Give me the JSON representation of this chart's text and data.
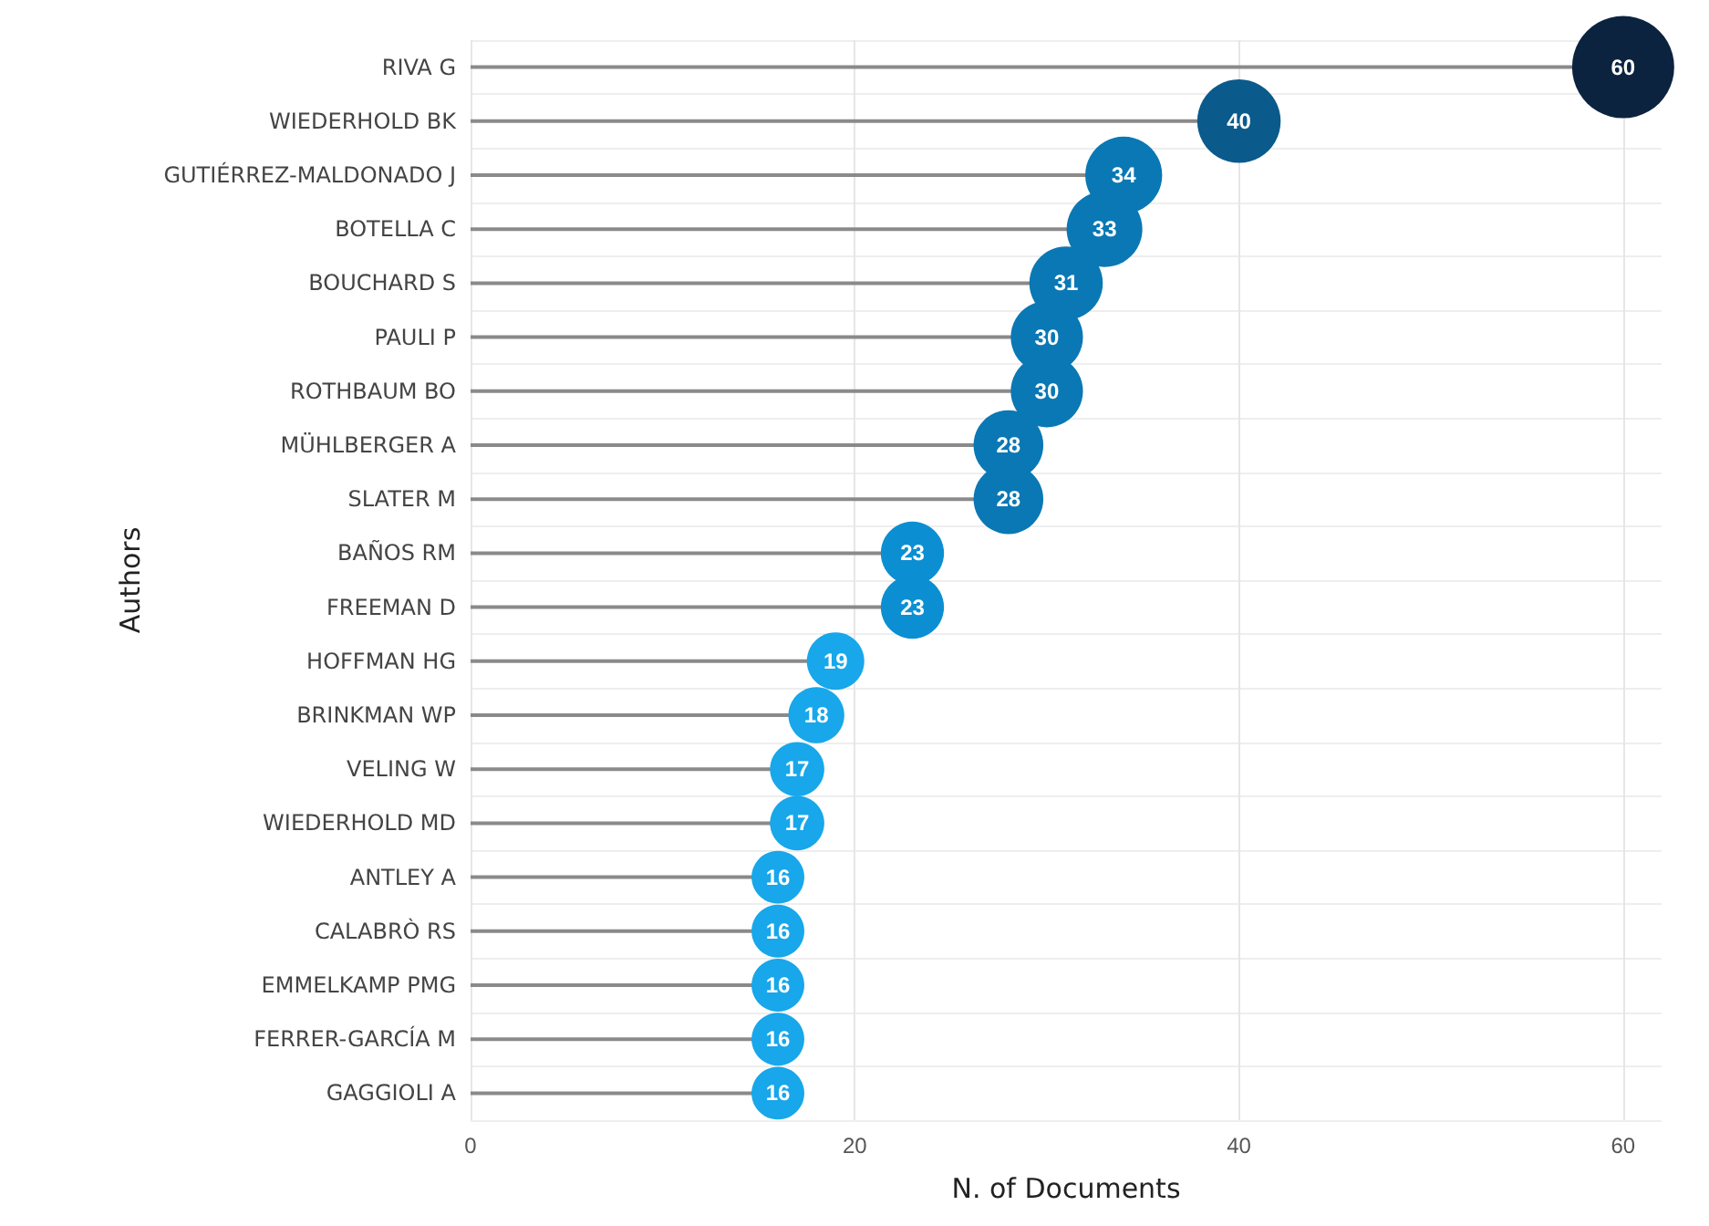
{
  "chart_data": {
    "type": "lollipop",
    "orientation": "horizontal",
    "xlabel": "N. of Documents",
    "ylabel": "Authors",
    "categories": [
      "RIVA G",
      "WIEDERHOLD BK",
      "GUTIÉRREZ-MALDONADO J",
      "BOTELLA C",
      "BOUCHARD S",
      "PAULI P",
      "ROTHBAUM BO",
      "MÜHLBERGER A",
      "SLATER M",
      "BAÑOS RM",
      "FREEMAN D",
      "HOFFMAN HG",
      "BRINKMAN WP",
      "VELING W",
      "WIEDERHOLD MD",
      "ANTLEY A",
      "CALABRÒ RS",
      "EMMELKAMP PMG",
      "FERRER-GARCÍA M",
      "GAGGIOLI A"
    ],
    "values": [
      60,
      40,
      34,
      33,
      31,
      30,
      30,
      28,
      28,
      23,
      23,
      19,
      18,
      17,
      17,
      16,
      16,
      16,
      16,
      16
    ],
    "colors": [
      "#0c2340",
      "#0b5a8c",
      "#0a78b4",
      "#0a78b4",
      "#0a78b4",
      "#0a78b4",
      "#0a78b4",
      "#0a78b4",
      "#0a78b4",
      "#0b8fd2",
      "#0b8fd2",
      "#17a7ea",
      "#17a7ea",
      "#17a7ea",
      "#17a7ea",
      "#17a7ea",
      "#17a7ea",
      "#17a7ea",
      "#17a7ea",
      "#17a7ea"
    ],
    "sizes": [
      1,
      0.667,
      0.567,
      0.55,
      0.517,
      0.5,
      0.5,
      0.467,
      0.467,
      0.383,
      0.383,
      0.317,
      0.3,
      0.283,
      0.283,
      0.267,
      0.267,
      0.267,
      0.267,
      0.267
    ],
    "xlim": [
      0,
      62
    ],
    "xticks": [
      0,
      20,
      40,
      60
    ],
    "grid": true,
    "data_labels": true,
    "marker": "circle"
  }
}
